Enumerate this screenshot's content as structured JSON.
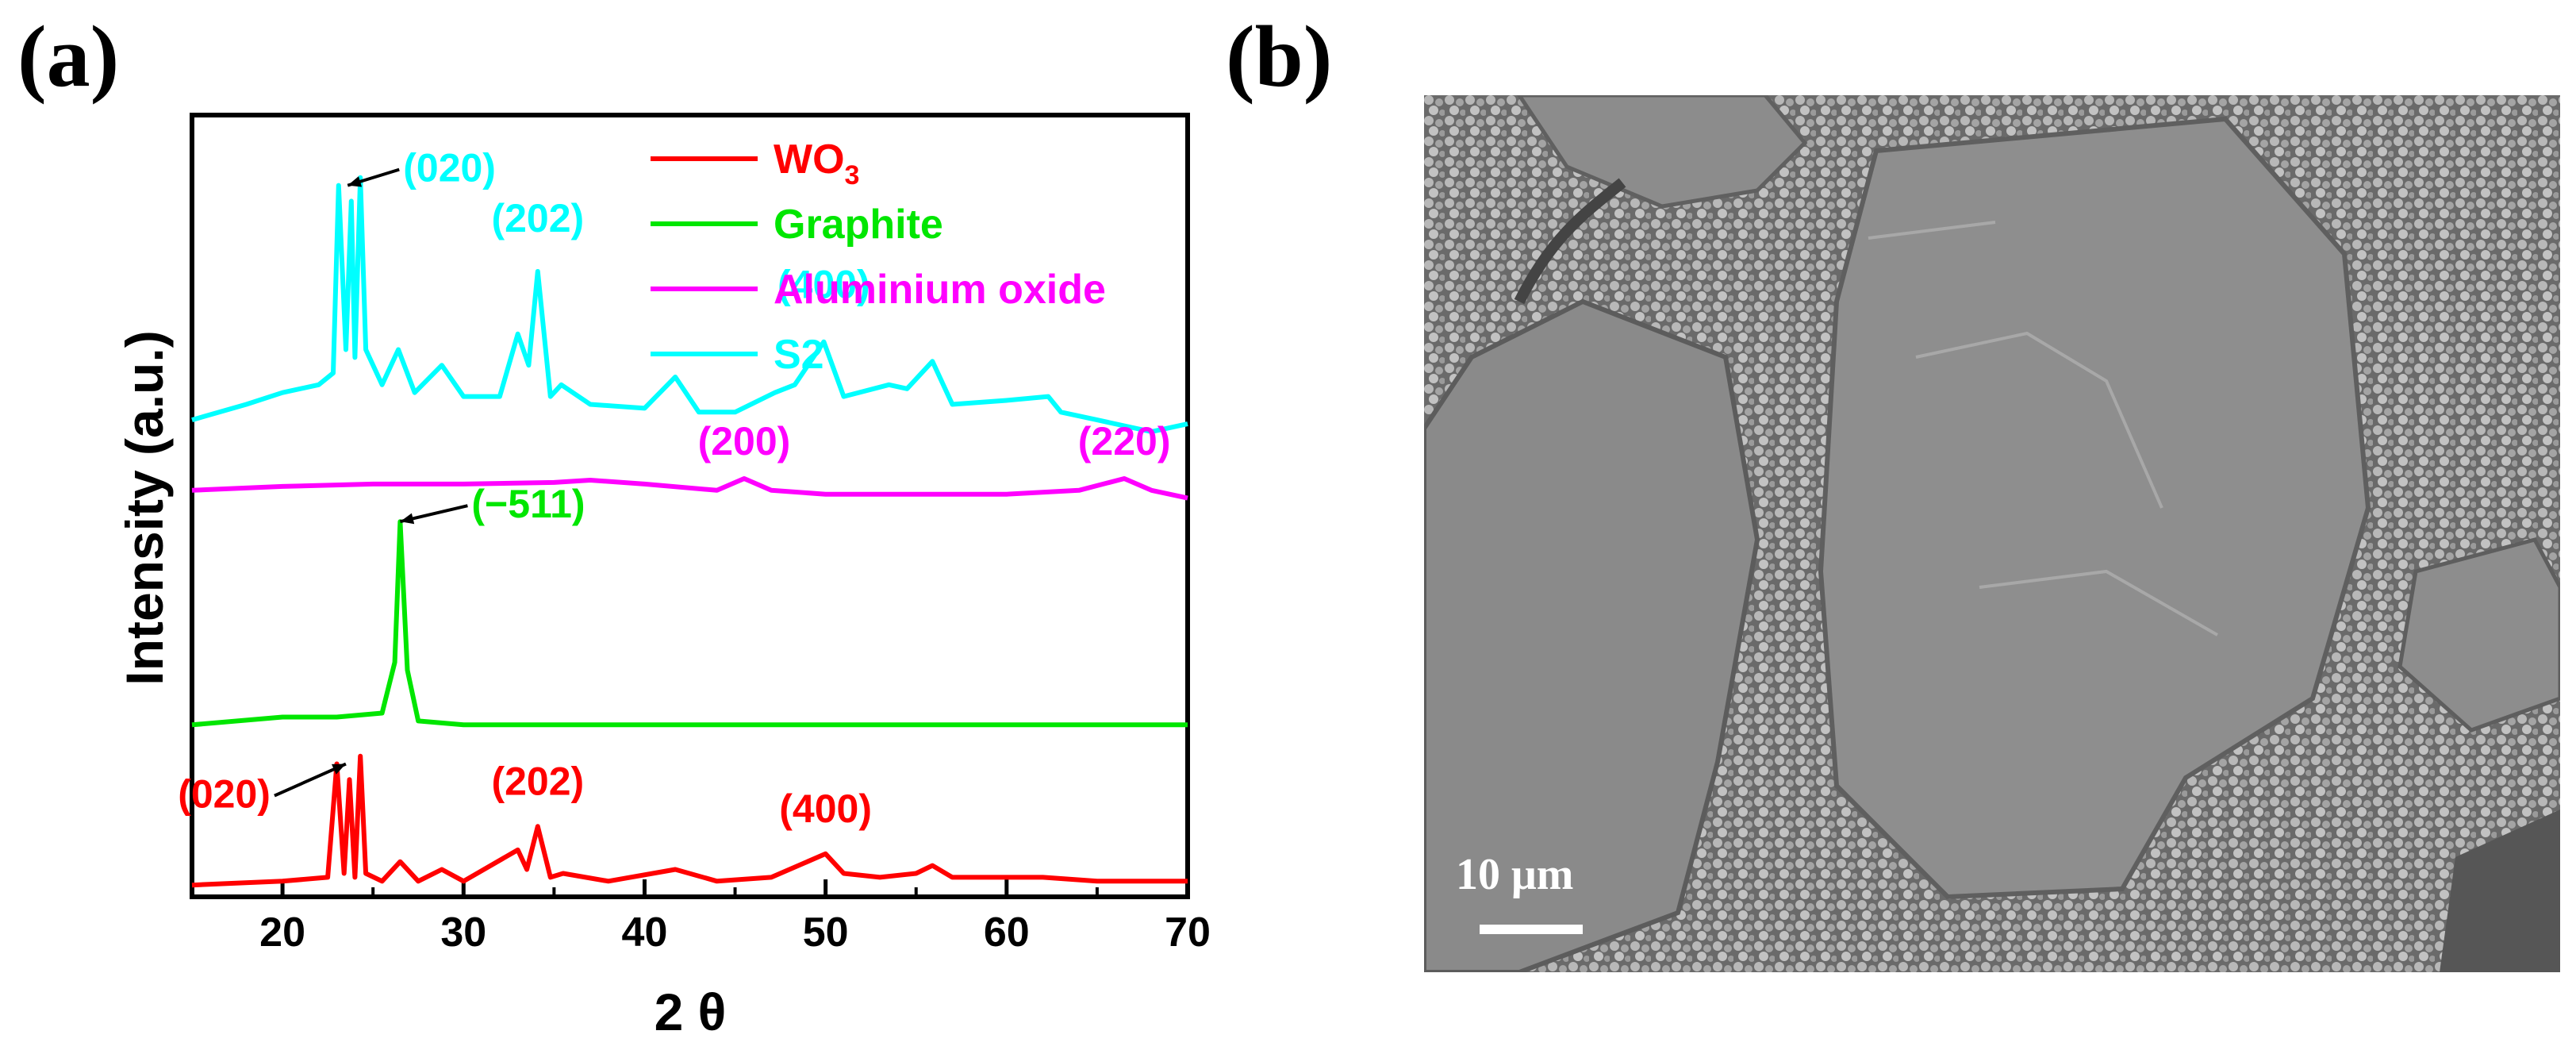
{
  "panel_a": {
    "label": "(a)"
  },
  "panel_b": {
    "label": "(b)",
    "scale_bar_label": "10 μm",
    "scale_bar_value_um": 10
  },
  "chart_data": {
    "type": "line",
    "xlabel": "2 θ",
    "ylabel": "Intensity (a.u.)",
    "xlim": [
      15,
      70
    ],
    "xticks": [
      20,
      30,
      40,
      50,
      60,
      70
    ],
    "ylim": [
      0,
      100
    ],
    "legend_position": "top-right",
    "grid": false,
    "series": [
      {
        "name": "WO",
        "name_subscript": "3",
        "color": "#ff0000",
        "x": [
          15,
          20,
          22.5,
          23.0,
          23.4,
          23.7,
          24.0,
          24.3,
          24.6,
          25.5,
          26.5,
          27.5,
          28.8,
          30,
          33,
          33.5,
          34.1,
          34.8,
          35.5,
          38,
          41.7,
          44,
          47,
          50.0,
          51,
          53,
          55,
          55.9,
          57,
          60,
          62,
          65,
          70
        ],
        "y": [
          1.5,
          2.0,
          2.5,
          17.0,
          3.0,
          15.0,
          2.5,
          18.0,
          3.0,
          2.0,
          4.5,
          2.0,
          3.5,
          2.0,
          6.0,
          3.5,
          9.0,
          2.5,
          3.0,
          2.0,
          3.5,
          2.0,
          2.5,
          5.5,
          3.0,
          2.5,
          3.0,
          4.0,
          2.5,
          2.5,
          2.5,
          2.0,
          2.0
        ]
      },
      {
        "name": "Graphite",
        "color": "#00e600",
        "x": [
          15,
          20,
          23,
          25.5,
          26.2,
          26.5,
          26.9,
          27.5,
          30,
          35,
          40,
          45,
          50,
          55,
          60,
          65,
          70
        ],
        "y": [
          22,
          23,
          23,
          23.5,
          30,
          48,
          29,
          22.5,
          22,
          22,
          22,
          22,
          22,
          22,
          22,
          22,
          22
        ]
      },
      {
        "name": "Aluminium oxide",
        "color": "#ff00ff",
        "x": [
          15,
          20,
          25,
          30,
          35,
          37,
          40,
          44,
          45.5,
          47,
          50,
          55,
          60,
          64,
          66.5,
          68,
          70
        ],
        "y": [
          52,
          52.5,
          52.8,
          52.8,
          53,
          53.3,
          52.8,
          52,
          53.5,
          52,
          51.5,
          51.5,
          51.5,
          52,
          53.5,
          52,
          51
        ]
      },
      {
        "name": "S2",
        "color": "#00ffff",
        "x": [
          15,
          18,
          20,
          22,
          22.8,
          23.1,
          23.5,
          23.8,
          24.0,
          24.3,
          24.6,
          25.5,
          26.4,
          27.3,
          28.8,
          30,
          32,
          33.0,
          33.6,
          34.1,
          34.8,
          35.4,
          37,
          40,
          41.7,
          43,
          45,
          47.2,
          48.3,
          49.9,
          51,
          53.5,
          54.5,
          55.9,
          57,
          60,
          62.3,
          63,
          65,
          67,
          68,
          70
        ],
        "y": [
          61,
          63,
          64.5,
          65.5,
          67,
          91,
          70,
          89,
          69,
          92,
          70,
          65.5,
          70,
          64.5,
          68,
          64,
          64,
          72,
          68,
          80,
          64,
          65.5,
          63,
          62.5,
          66.5,
          62,
          62,
          64.5,
          65.5,
          71,
          64,
          65.5,
          65,
          68.5,
          63,
          63.5,
          64,
          62,
          61,
          60,
          59.5,
          60.5
        ]
      }
    ],
    "annotations": [
      {
        "text": "(020)",
        "series": "S2",
        "x": 23.6,
        "y": 91,
        "arrow": true
      },
      {
        "text": "(202)",
        "series": "S2",
        "x": 34.1,
        "y": 80,
        "arrow": false
      },
      {
        "text": "(400)",
        "series": "S2",
        "x": 49.9,
        "y": 71,
        "arrow": false
      },
      {
        "text": "(200)",
        "series": "Aluminium oxide",
        "x": 45.5,
        "y": 53.5,
        "arrow": false
      },
      {
        "text": "(220)",
        "series": "Aluminium oxide",
        "x": 66.5,
        "y": 53.5,
        "arrow": false
      },
      {
        "text": "(−511)",
        "series": "Graphite",
        "x": 26.5,
        "y": 48,
        "arrow": true
      },
      {
        "text": "(020)",
        "series": "WO",
        "x": 23.5,
        "y": 17,
        "arrow": true
      },
      {
        "text": "(202)",
        "series": "WO",
        "x": 34.1,
        "y": 9,
        "arrow": false
      },
      {
        "text": "(400)",
        "series": "WO",
        "x": 50.0,
        "y": 5.5,
        "arrow": false
      }
    ]
  }
}
